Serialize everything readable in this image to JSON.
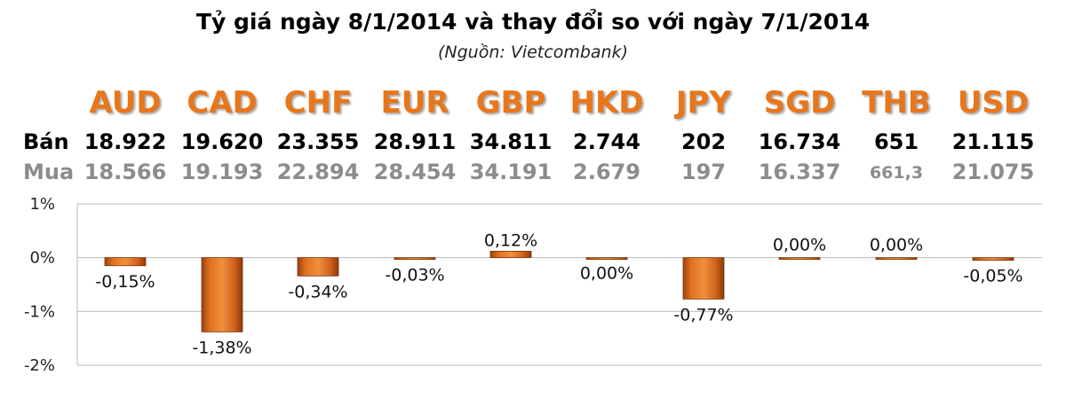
{
  "header": {
    "title": "Tỷ giá ngày 8/1/2014 và thay đổi so với ngày 7/1/2014",
    "source": "(Nguồn: Vietcombank)"
  },
  "rates": {
    "sell_label": "Bán",
    "buy_label": "Mua",
    "currencies": [
      "AUD",
      "CAD",
      "CHF",
      "EUR",
      "GBP",
      "HKD",
      "JPY",
      "SGD",
      "THB",
      "USD"
    ],
    "sell": [
      "18.922",
      "19.620",
      "23.355",
      "28.911",
      "34.811",
      "2.744",
      "202",
      "16.734",
      "651",
      "21.115"
    ],
    "buy": [
      "18.566",
      "19.193",
      "22.894",
      "28.454",
      "34.191",
      "2.679",
      "197",
      "16.337",
      "661,3",
      "21.075"
    ]
  },
  "colors": {
    "accent": "#e8761b",
    "bar": "#d9681a",
    "bar_dark": "#8e3c0c",
    "buy_text": "#8c8c8c"
  },
  "chart_data": {
    "type": "bar",
    "categories": [
      "AUD",
      "CAD",
      "CHF",
      "EUR",
      "GBP",
      "HKD",
      "JPY",
      "SGD",
      "THB",
      "USD"
    ],
    "values": [
      -0.15,
      -1.38,
      -0.34,
      -0.03,
      0.12,
      0.0,
      -0.77,
      0.0,
      0.0,
      -0.05
    ],
    "data_labels": [
      "-0,15%",
      "-1,38%",
      "-0,34%",
      "-0,03%",
      "0,12%",
      "0,00%",
      "-0,77%",
      "0,00%",
      "0,00%",
      "-0,05%"
    ],
    "ytick_labels": [
      "1%",
      "0%",
      "-1%",
      "-2%"
    ],
    "yticks": [
      1,
      0,
      -1,
      -2
    ],
    "ylim": [
      -2,
      1
    ],
    "ylabel": "",
    "xlabel": "",
    "gridlines": true
  }
}
